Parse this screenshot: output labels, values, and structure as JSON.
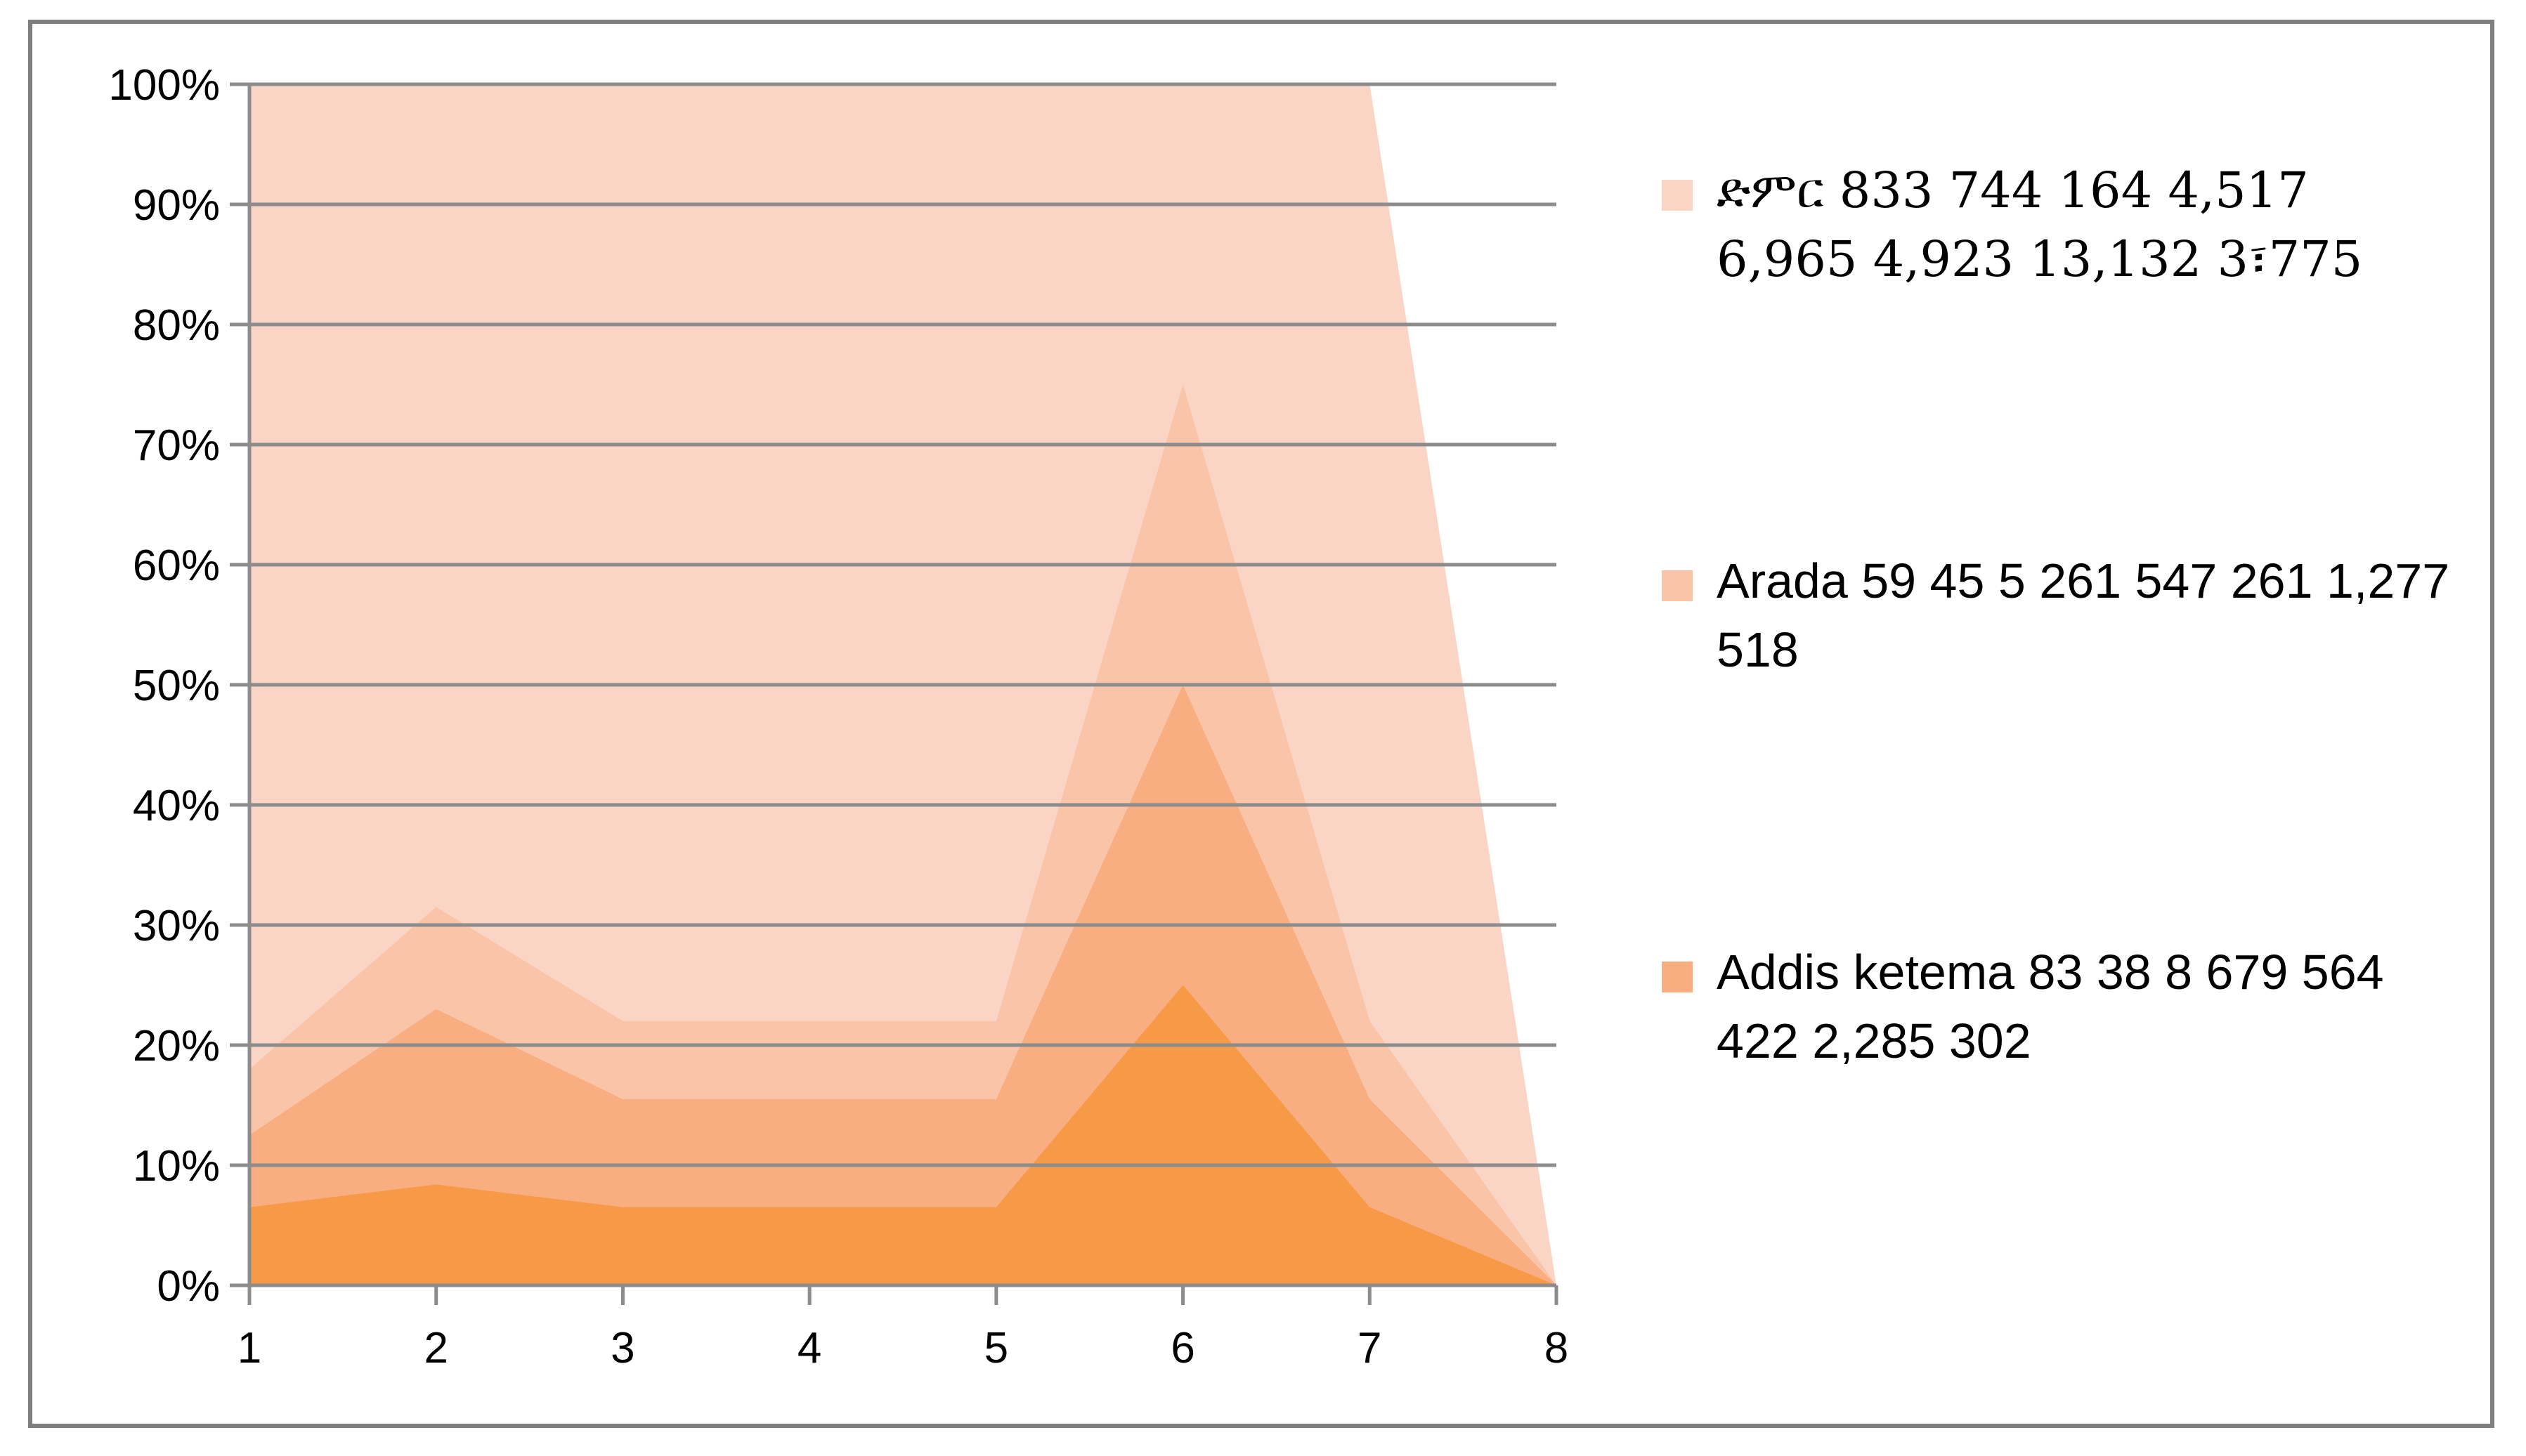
{
  "chart_data": {
    "type": "area",
    "stacked": "percent",
    "x": [
      "1",
      "2",
      "3",
      "4",
      "5",
      "6",
      "7",
      "8"
    ],
    "y_ticks": [
      "0%",
      "10%",
      "20%",
      "30%",
      "40%",
      "50%",
      "60%",
      "70%",
      "80%",
      "90%",
      "100%"
    ],
    "ylim": [
      0,
      100
    ],
    "grid": "horizontal",
    "legend_position": "right",
    "series": [
      {
        "name": "Addis ketema 83 38 8 679 564 422 2,285 302",
        "color": "#F79A48",
        "top_percent": [
          6.5,
          8.4,
          6.5,
          6.5,
          6.5,
          25.0,
          6.5,
          0
        ]
      },
      {
        "name": "Arada  59 45 5 261 547 261 1,277 518",
        "color": "#F8AE80",
        "top_percent": [
          12.5,
          23.0,
          15.5,
          15.5,
          15.5,
          50.0,
          15.5,
          0
        ]
      },
      {
        "name": "",
        "color": "#F9C4A8",
        "top_percent": [
          18.0,
          31.5,
          22.0,
          22.0,
          22.0,
          75.0,
          22.0,
          0
        ]
      },
      {
        "name": "ድምር 833 744 164 4,517 6,965 4,923 13,132 3፣775",
        "color": "#FAD5C5",
        "top_percent": [
          100,
          100,
          100,
          100,
          100,
          100,
          100,
          0
        ]
      }
    ]
  },
  "legend": {
    "total_label": "ድምር 833 744 164 4,517 6,965 4,923 13,132 3፣775",
    "arada_label": "Arada  59 45 5 261 547 261 1,277 518",
    "addis_label": "Addis ketema 83 38 8 679 564 422 2,285 302"
  },
  "colors": {
    "grid": "#8c8c8c",
    "axis": "#8c8c8c",
    "frame": "#7f7f7f"
  }
}
